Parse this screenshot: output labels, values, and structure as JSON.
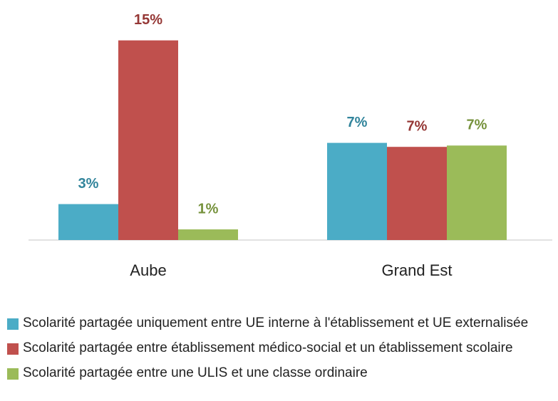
{
  "chart_data": {
    "type": "bar",
    "categories": [
      "Aube",
      "Grand Est"
    ],
    "series": [
      {
        "name": "Scolarité partagée uniquement entre UE interne à l'établissement et UE externalisée",
        "color": "#4bacc6",
        "label_color": "#31849b",
        "values": [
          2.7,
          7.3
        ],
        "value_labels": [
          "3%",
          "7%"
        ]
      },
      {
        "name": "Scolarité partagée entre établissement médico-social et un établissement scolaire",
        "color": "#c0504d",
        "label_color": "#953735",
        "values": [
          15,
          7.0
        ],
        "value_labels": [
          "15%",
          "7%"
        ]
      },
      {
        "name": "Scolarité partagée entre une ULIS et une classe ordinaire",
        "color": "#9bbb59",
        "label_color": "#76923c",
        "values": [
          0.8,
          7.1
        ],
        "value_labels": [
          "1%",
          "7%"
        ]
      }
    ],
    "ylim": [
      0,
      16
    ]
  }
}
